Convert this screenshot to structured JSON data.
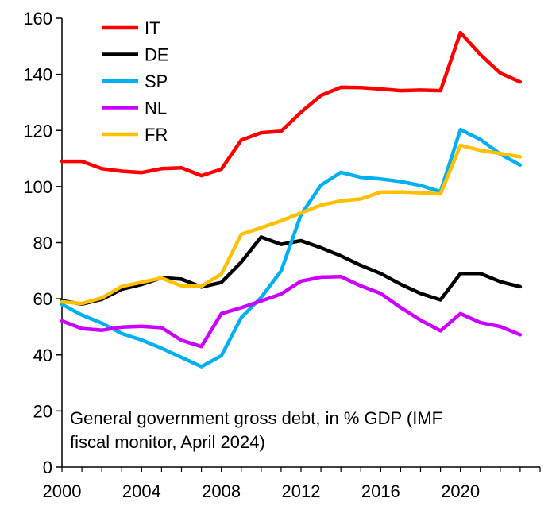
{
  "chart_data": {
    "type": "line",
    "title": "",
    "xlabel": "",
    "ylabel": "",
    "annotation_lines": [
      "General government gross debt, in % GDP (IMF",
      "fiscal monitor, April 2024)"
    ],
    "xlim": [
      2000,
      2024
    ],
    "ylim": [
      0,
      160
    ],
    "x_ticks": [
      2000,
      2004,
      2008,
      2012,
      2016,
      2020
    ],
    "y_ticks": [
      0,
      20,
      40,
      60,
      80,
      100,
      120,
      140,
      160
    ],
    "grid": false,
    "legend_position": "top-left",
    "x": [
      2000,
      2001,
      2002,
      2003,
      2004,
      2005,
      2006,
      2007,
      2008,
      2009,
      2010,
      2011,
      2012,
      2013,
      2014,
      2015,
      2016,
      2017,
      2018,
      2019,
      2020,
      2021,
      2022,
      2023
    ],
    "series": [
      {
        "name": "IT",
        "color": "#FF0000",
        "values": [
          109,
          109,
          106.4,
          105.5,
          105,
          106.4,
          106.7,
          103.9,
          106.2,
          116.6,
          119.2,
          119.7,
          126.5,
          132.5,
          135.4,
          135.3,
          134.8,
          134.2,
          134.4,
          134.2,
          154.9,
          147.1,
          140.5,
          137.3
        ]
      },
      {
        "name": "DE",
        "color": "#000000",
        "values": [
          59.3,
          58.1,
          59.8,
          63.4,
          65.1,
          67.5,
          67,
          64.2,
          65.8,
          73.1,
          82,
          79.4,
          80.7,
          78.2,
          75.3,
          71.9,
          69,
          65.2,
          61.9,
          59.6,
          69,
          69,
          66.1,
          64.3
        ]
      },
      {
        "name": "SP",
        "color": "#00B0F0",
        "values": [
          58,
          54.2,
          51.3,
          47.6,
          45.3,
          42.4,
          39.1,
          35.8,
          39.7,
          53.3,
          60.5,
          69.9,
          90,
          100.5,
          105.1,
          103.3,
          102.7,
          101.8,
          100.4,
          98.2,
          120.3,
          116.8,
          111.6,
          107.7
        ]
      },
      {
        "name": "NL",
        "color": "#CC00FF",
        "values": [
          52.1,
          49.4,
          48.8,
          49.9,
          50.2,
          49.7,
          45.2,
          43,
          54.7,
          56.8,
          59.2,
          61.7,
          66.3,
          67.7,
          67.9,
          64.6,
          61.9,
          56.9,
          52.4,
          48.6,
          54.7,
          51.5,
          50.1,
          47.2
        ]
      },
      {
        "name": "FR",
        "color": "#FFC000",
        "values": [
          58.9,
          58.3,
          60.3,
          64.4,
          65.9,
          67.4,
          64.6,
          64.5,
          68.8,
          83,
          85.3,
          87.8,
          90.6,
          93.4,
          94.9,
          95.6,
          98,
          98.1,
          97.8,
          97.4,
          114.7,
          112.9,
          111.8,
          110.6
        ]
      }
    ]
  }
}
